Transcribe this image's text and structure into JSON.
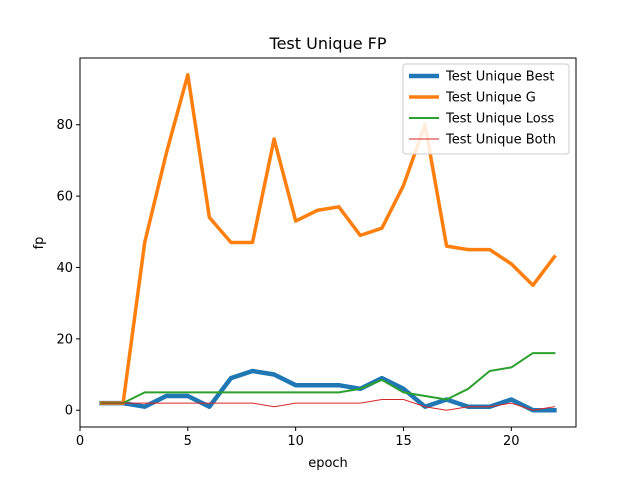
{
  "chart_data": {
    "type": "line",
    "title": "Test Unique FP",
    "xlabel": "epoch",
    "ylabel": "fp",
    "xlim": [
      0,
      23
    ],
    "ylim": [
      -4.7,
      98.7
    ],
    "xticks": [
      0,
      5,
      10,
      15,
      20
    ],
    "yticks": [
      0,
      20,
      40,
      60,
      80
    ],
    "grid": false,
    "legend_position": "top-right",
    "x": [
      1,
      2,
      3,
      4,
      5,
      6,
      7,
      8,
      9,
      10,
      11,
      12,
      13,
      14,
      15,
      16,
      17,
      18,
      19,
      20,
      21,
      22
    ],
    "series": [
      {
        "name": "Test Unique Best",
        "color": "#1f77b4",
        "values": [
          2,
          2,
          1,
          4,
          4,
          1,
          9,
          11,
          10,
          7,
          7,
          7,
          6,
          9,
          6,
          1,
          3,
          1,
          1,
          3,
          0,
          0
        ]
      },
      {
        "name": "Test Unique G",
        "color": "#ff7f0e",
        "values": [
          2,
          2,
          47,
          72,
          94,
          54,
          47,
          47,
          76,
          53,
          56,
          57,
          49,
          51,
          63,
          80,
          46,
          45,
          45,
          41,
          35,
          43
        ]
      },
      {
        "name": "Test Unique Loss",
        "color": "#2ca02c",
        "values": [
          2,
          2,
          5,
          5,
          5,
          5,
          5,
          5,
          5,
          5,
          5,
          5,
          6,
          8.5,
          5,
          4,
          3,
          6,
          11,
          12,
          16,
          16
        ]
      },
      {
        "name": "Test Unique Both",
        "color": "#d62728",
        "values": [
          2,
          2,
          2,
          2,
          2,
          2,
          2,
          2,
          1,
          2,
          2,
          2,
          2,
          3,
          3,
          1,
          0,
          1,
          1,
          2,
          0,
          1
        ]
      }
    ]
  }
}
